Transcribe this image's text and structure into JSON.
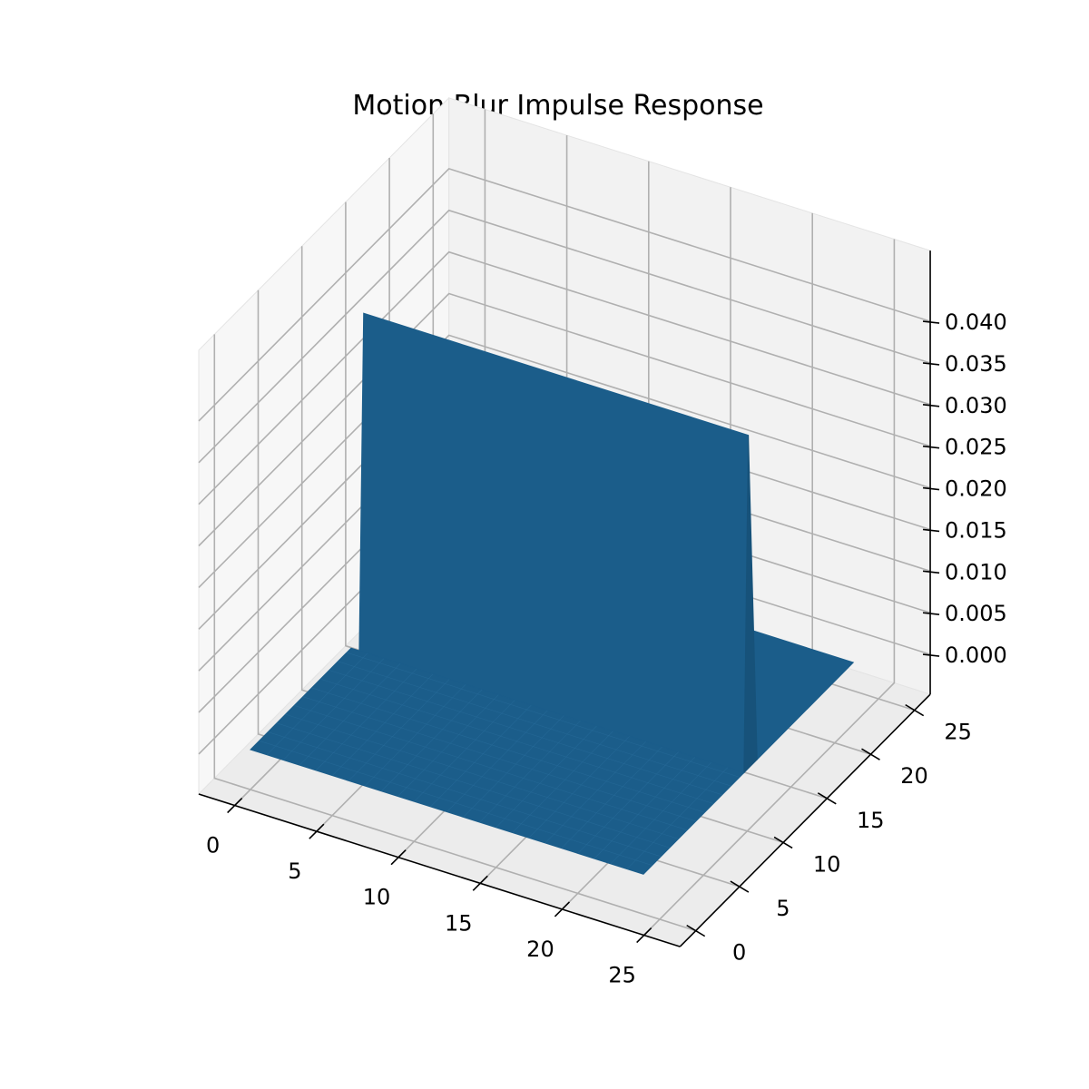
{
  "chart_data": {
    "type": "surface3d",
    "title": "Motion Blur Impulse Response",
    "xlabel": "",
    "ylabel": "",
    "zlabel": "",
    "xlim": [
      0,
      25
    ],
    "ylim": [
      0,
      25
    ],
    "zlim": [
      0,
      0.04
    ],
    "x_ticks": [
      0,
      5,
      10,
      15,
      20,
      25
    ],
    "y_ticks": [
      0,
      5,
      10,
      15,
      20,
      25
    ],
    "z_ticks": [
      "0.000",
      "0.005",
      "0.010",
      "0.015",
      "0.020",
      "0.025",
      "0.030",
      "0.035",
      "0.040"
    ],
    "grid": true,
    "surface_color": "#1b5d8a",
    "kernel_size": 25,
    "kernel_line_row": 12,
    "kernel_line_value": 0.04,
    "background_value": 0
  },
  "colors": {
    "pane_left": "#f7f7f7",
    "pane_back": "#f2f2f2",
    "pane_floor": "#ececec",
    "surface": "#1b5d8a"
  }
}
